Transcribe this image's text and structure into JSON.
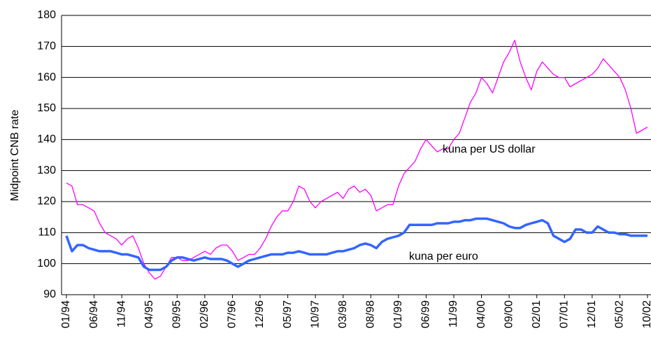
{
  "chart_data": {
    "type": "line",
    "y_label": "Midpoint CNB rate",
    "categories": [
      "01/94",
      null,
      null,
      null,
      null,
      "06/94",
      null,
      null,
      null,
      null,
      "11/94",
      null,
      null,
      null,
      null,
      "04/95",
      null,
      null,
      null,
      null,
      "09/95",
      null,
      null,
      null,
      null,
      "02/96",
      null,
      null,
      null,
      null,
      "07/96",
      null,
      null,
      null,
      null,
      "12/96",
      null,
      null,
      null,
      null,
      "05/97",
      null,
      null,
      null,
      null,
      "10/97",
      null,
      null,
      null,
      null,
      "03/98",
      null,
      null,
      null,
      null,
      "08/98",
      null,
      null,
      null,
      null,
      "01/99",
      null,
      null,
      null,
      null,
      "06/99",
      null,
      null,
      null,
      null,
      "11/99",
      null,
      null,
      null,
      null,
      "04/00",
      null,
      null,
      null,
      null,
      "09/00",
      null,
      null,
      null,
      null,
      "02/01",
      null,
      null,
      null,
      null,
      "07/01",
      null,
      null,
      null,
      null,
      "12/01",
      null,
      null,
      null,
      null,
      "05/02",
      null,
      null,
      null,
      null,
      "10/02"
    ],
    "series": [
      {
        "name": "kuna per US dollar",
        "color": "#ff00ff",
        "values": [
          126,
          125,
          119,
          119,
          118,
          117,
          113,
          110,
          109,
          108,
          106,
          108,
          109,
          105,
          100,
          97,
          95,
          96,
          99,
          102,
          102,
          101,
          101,
          102,
          103,
          104,
          103,
          105,
          106,
          106,
          104,
          101,
          102,
          103,
          103,
          105,
          108,
          112,
          115,
          117,
          117,
          120,
          125,
          124,
          120,
          118,
          120,
          121,
          122,
          123,
          121,
          124,
          125,
          123,
          124,
          122,
          117,
          118,
          119,
          119,
          125,
          129,
          131,
          133,
          137,
          140,
          138,
          136,
          137,
          137,
          140,
          142,
          147,
          152,
          155,
          160,
          158,
          155,
          160,
          165,
          168,
          172,
          165,
          160,
          156,
          162,
          165,
          163,
          161,
          160,
          160,
          157,
          158,
          159,
          160,
          161,
          163,
          166,
          164,
          162,
          160,
          156,
          150,
          142,
          143,
          144
        ]
      },
      {
        "name": "kuna per euro",
        "color": "#3366ff",
        "values": [
          109,
          104,
          106,
          106,
          105,
          104.5,
          104,
          104,
          104,
          103.5,
          103,
          103,
          102.5,
          102,
          99,
          98,
          98,
          98,
          99,
          101,
          102,
          102,
          101.5,
          101,
          101.5,
          102,
          101.5,
          101.5,
          101.5,
          101,
          100,
          99,
          100,
          101,
          101.5,
          102,
          102.5,
          103,
          103,
          103,
          103.5,
          103.5,
          104,
          103.5,
          103,
          103,
          103,
          103,
          103.5,
          104,
          104,
          104.5,
          105,
          106,
          106.5,
          106,
          105,
          107,
          108,
          108.5,
          109,
          110,
          112.5,
          112.5,
          112.5,
          112.5,
          112.5,
          113,
          113,
          113,
          113.5,
          113.5,
          114,
          114,
          114.5,
          114.5,
          114.5,
          114,
          113.5,
          113,
          112,
          111.5,
          111.5,
          112.5,
          113,
          113.5,
          114,
          113,
          109,
          108,
          107,
          108,
          111,
          111,
          110,
          110,
          112,
          111,
          110,
          110,
          109.5,
          109.5,
          109,
          109,
          109,
          109
        ]
      }
    ],
    "ylim": [
      90,
      180
    ],
    "yticks": [
      90,
      100,
      110,
      120,
      130,
      140,
      150,
      160,
      170,
      180
    ],
    "grid": true
  }
}
